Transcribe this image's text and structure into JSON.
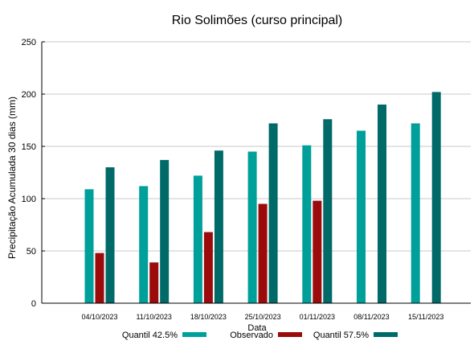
{
  "chart_data": {
    "type": "bar",
    "title": "Rio Solimões (curso principal)",
    "xlabel": "Data",
    "ylabel": "Precipitação Acumulada 30 dias (mm)",
    "ylim": [
      0,
      250
    ],
    "yticks": [
      0,
      50,
      100,
      150,
      200,
      250
    ],
    "grid": true,
    "legend_position": "bottom",
    "categories": [
      "04/10/2023",
      "11/10/2023",
      "18/10/2023",
      "25/10/2023",
      "01/11/2023",
      "08/11/2023",
      "15/11/2023"
    ],
    "series": [
      {
        "name": "Quantil 42.5%",
        "color": "#00a09a",
        "values": [
          109,
          112,
          122,
          145,
          151,
          165,
          172
        ]
      },
      {
        "name": "Observado",
        "color": "#9b0b0b",
        "values": [
          48,
          39,
          68,
          95,
          98,
          null,
          null
        ]
      },
      {
        "name": "Quantil 57.5%",
        "color": "#006a68",
        "values": [
          130,
          137,
          146,
          172,
          176,
          190,
          202
        ]
      }
    ]
  }
}
